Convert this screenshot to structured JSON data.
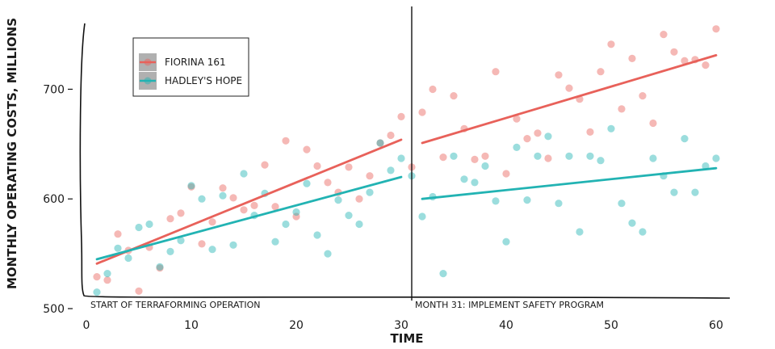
{
  "chart_data": {
    "type": "scatter",
    "title": "",
    "xlabel": "TIME",
    "ylabel": "MONTHLY OPERATING COSTS, MILLIONS",
    "xlim": [
      -1.5,
      61.5
    ],
    "ylim": [
      500,
      760
    ],
    "x_ticks": [
      0,
      10,
      20,
      30,
      40,
      50,
      60
    ],
    "y_ticks": [
      500,
      600,
      700
    ],
    "grid": false,
    "legend": "top-left",
    "intervention": {
      "x": 31,
      "labels": [
        "START OF TERRAFORMING OPERATION",
        "MONTH 31: IMPLEMENT SAFETY PROGRAM"
      ]
    },
    "series": [
      {
        "name": "FIORINA 161",
        "color": "#e8615a",
        "points": [
          [
            1,
            529
          ],
          [
            2,
            526
          ],
          [
            3,
            568
          ],
          [
            4,
            553
          ],
          [
            5,
            516
          ],
          [
            6,
            556
          ],
          [
            7,
            537
          ],
          [
            8,
            582
          ],
          [
            9,
            587
          ],
          [
            10,
            611
          ],
          [
            11,
            559
          ],
          [
            12,
            579
          ],
          [
            13,
            610
          ],
          [
            14,
            601
          ],
          [
            15,
            590
          ],
          [
            16,
            594
          ],
          [
            17,
            631
          ],
          [
            18,
            593
          ],
          [
            19,
            653
          ],
          [
            20,
            584
          ],
          [
            21,
            645
          ],
          [
            22,
            630
          ],
          [
            23,
            615
          ],
          [
            24,
            606
          ],
          [
            25,
            629
          ],
          [
            26,
            600
          ],
          [
            27,
            621
          ],
          [
            28,
            651
          ],
          [
            29,
            658
          ],
          [
            30,
            675
          ],
          [
            31,
            629
          ],
          [
            32,
            679
          ],
          [
            33,
            700
          ],
          [
            34,
            638
          ],
          [
            35,
            694
          ],
          [
            36,
            664
          ],
          [
            37,
            636
          ],
          [
            38,
            639
          ],
          [
            39,
            716
          ],
          [
            40,
            623
          ],
          [
            41,
            673
          ],
          [
            42,
            655
          ],
          [
            43,
            660
          ],
          [
            44,
            637
          ],
          [
            45,
            713
          ],
          [
            46,
            701
          ],
          [
            47,
            691
          ],
          [
            48,
            661
          ],
          [
            49,
            716
          ],
          [
            50,
            741
          ],
          [
            51,
            682
          ],
          [
            52,
            728
          ],
          [
            53,
            694
          ],
          [
            54,
            669
          ],
          [
            55,
            750
          ],
          [
            56,
            734
          ],
          [
            57,
            726
          ],
          [
            58,
            727
          ],
          [
            59,
            722
          ],
          [
            60,
            755
          ]
        ],
        "trend": [
          [
            [
              1,
              541
            ],
            [
              30,
              654
            ]
          ],
          [
            [
              32,
              651
            ],
            [
              60,
              731
            ]
          ]
        ]
      },
      {
        "name": "HADLEY'S HOPE",
        "color": "#22b3b3",
        "points": [
          [
            1,
            515
          ],
          [
            2,
            532
          ],
          [
            3,
            555
          ],
          [
            4,
            546
          ],
          [
            5,
            574
          ],
          [
            6,
            577
          ],
          [
            7,
            538
          ],
          [
            8,
            552
          ],
          [
            9,
            562
          ],
          [
            10,
            612
          ],
          [
            11,
            600
          ],
          [
            12,
            554
          ],
          [
            13,
            603
          ],
          [
            14,
            558
          ],
          [
            15,
            623
          ],
          [
            16,
            585
          ],
          [
            17,
            605
          ],
          [
            18,
            561
          ],
          [
            19,
            577
          ],
          [
            20,
            588
          ],
          [
            21,
            614
          ],
          [
            22,
            567
          ],
          [
            23,
            550
          ],
          [
            24,
            599
          ],
          [
            25,
            585
          ],
          [
            26,
            577
          ],
          [
            27,
            606
          ],
          [
            28,
            651
          ],
          [
            29,
            626
          ],
          [
            30,
            637
          ],
          [
            31,
            621
          ],
          [
            32,
            584
          ],
          [
            33,
            602
          ],
          [
            34,
            532
          ],
          [
            35,
            639
          ],
          [
            36,
            618
          ],
          [
            37,
            615
          ],
          [
            38,
            630
          ],
          [
            39,
            598
          ],
          [
            40,
            561
          ],
          [
            41,
            647
          ],
          [
            42,
            599
          ],
          [
            43,
            639
          ],
          [
            44,
            657
          ],
          [
            45,
            596
          ],
          [
            46,
            639
          ],
          [
            47,
            570
          ],
          [
            48,
            639
          ],
          [
            49,
            635
          ],
          [
            50,
            664
          ],
          [
            51,
            596
          ],
          [
            52,
            578
          ],
          [
            53,
            570
          ],
          [
            54,
            637
          ],
          [
            55,
            621
          ],
          [
            56,
            606
          ],
          [
            57,
            655
          ],
          [
            58,
            606
          ],
          [
            59,
            630
          ],
          [
            60,
            637
          ]
        ],
        "trend": [
          [
            [
              1,
              545
            ],
            [
              30,
              620
            ]
          ],
          [
            [
              32,
              600
            ],
            [
              60,
              628
            ]
          ]
        ]
      }
    ]
  }
}
